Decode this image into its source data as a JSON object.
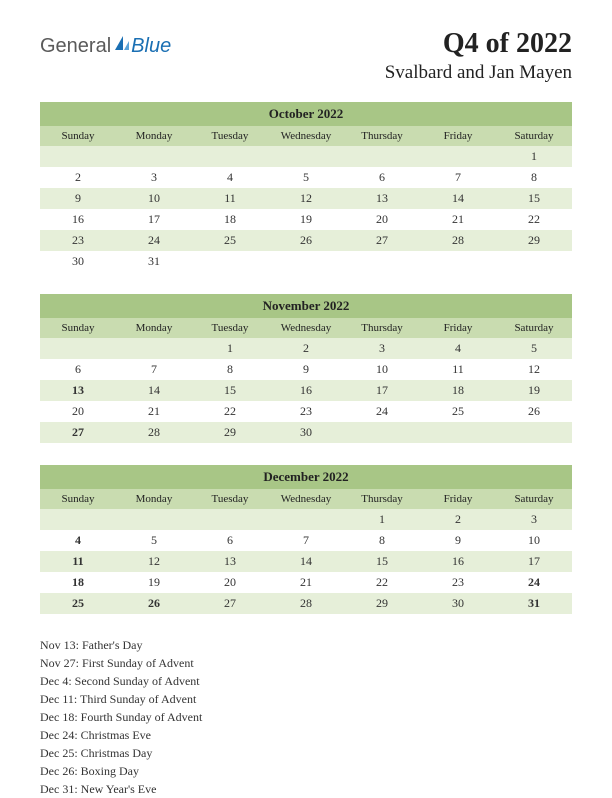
{
  "logo": {
    "part1": "General",
    "part2": "Blue"
  },
  "title": "Q4 of 2022",
  "subtitle": "Svalbard and Jan Mayen",
  "colors": {
    "title_bg": "#a8c686",
    "header_bg": "#c9dcb0",
    "shade_bg": "#e6efd9",
    "holiday": "#c0392b"
  },
  "day_headers": [
    "Sunday",
    "Monday",
    "Tuesday",
    "Wednesday",
    "Thursday",
    "Friday",
    "Saturday"
  ],
  "months": [
    {
      "name": "October 2022",
      "weeks": [
        {
          "shaded": true,
          "days": [
            {
              "n": ""
            },
            {
              "n": ""
            },
            {
              "n": ""
            },
            {
              "n": ""
            },
            {
              "n": ""
            },
            {
              "n": ""
            },
            {
              "n": "1"
            }
          ]
        },
        {
          "shaded": false,
          "days": [
            {
              "n": "2"
            },
            {
              "n": "3"
            },
            {
              "n": "4"
            },
            {
              "n": "5"
            },
            {
              "n": "6"
            },
            {
              "n": "7"
            },
            {
              "n": "8"
            }
          ]
        },
        {
          "shaded": true,
          "days": [
            {
              "n": "9"
            },
            {
              "n": "10"
            },
            {
              "n": "11"
            },
            {
              "n": "12"
            },
            {
              "n": "13"
            },
            {
              "n": "14"
            },
            {
              "n": "15"
            }
          ]
        },
        {
          "shaded": false,
          "days": [
            {
              "n": "16"
            },
            {
              "n": "17"
            },
            {
              "n": "18"
            },
            {
              "n": "19"
            },
            {
              "n": "20"
            },
            {
              "n": "21"
            },
            {
              "n": "22"
            }
          ]
        },
        {
          "shaded": true,
          "days": [
            {
              "n": "23"
            },
            {
              "n": "24"
            },
            {
              "n": "25"
            },
            {
              "n": "26"
            },
            {
              "n": "27"
            },
            {
              "n": "28"
            },
            {
              "n": "29"
            }
          ]
        },
        {
          "shaded": false,
          "days": [
            {
              "n": "30"
            },
            {
              "n": "31"
            },
            {
              "n": ""
            },
            {
              "n": ""
            },
            {
              "n": ""
            },
            {
              "n": ""
            },
            {
              "n": ""
            }
          ]
        }
      ]
    },
    {
      "name": "November 2022",
      "weeks": [
        {
          "shaded": true,
          "days": [
            {
              "n": ""
            },
            {
              "n": ""
            },
            {
              "n": "1"
            },
            {
              "n": "2"
            },
            {
              "n": "3"
            },
            {
              "n": "4"
            },
            {
              "n": "5"
            }
          ]
        },
        {
          "shaded": false,
          "days": [
            {
              "n": "6"
            },
            {
              "n": "7"
            },
            {
              "n": "8"
            },
            {
              "n": "9"
            },
            {
              "n": "10"
            },
            {
              "n": "11"
            },
            {
              "n": "12"
            }
          ]
        },
        {
          "shaded": true,
          "days": [
            {
              "n": "13",
              "h": true
            },
            {
              "n": "14"
            },
            {
              "n": "15"
            },
            {
              "n": "16"
            },
            {
              "n": "17"
            },
            {
              "n": "18"
            },
            {
              "n": "19"
            }
          ]
        },
        {
          "shaded": false,
          "days": [
            {
              "n": "20"
            },
            {
              "n": "21"
            },
            {
              "n": "22"
            },
            {
              "n": "23"
            },
            {
              "n": "24"
            },
            {
              "n": "25"
            },
            {
              "n": "26"
            }
          ]
        },
        {
          "shaded": true,
          "days": [
            {
              "n": "27",
              "h": true
            },
            {
              "n": "28"
            },
            {
              "n": "29"
            },
            {
              "n": "30"
            },
            {
              "n": ""
            },
            {
              "n": ""
            },
            {
              "n": ""
            }
          ]
        }
      ]
    },
    {
      "name": "December 2022",
      "weeks": [
        {
          "shaded": true,
          "days": [
            {
              "n": ""
            },
            {
              "n": ""
            },
            {
              "n": ""
            },
            {
              "n": ""
            },
            {
              "n": "1"
            },
            {
              "n": "2"
            },
            {
              "n": "3"
            }
          ]
        },
        {
          "shaded": false,
          "days": [
            {
              "n": "4",
              "h": true
            },
            {
              "n": "5"
            },
            {
              "n": "6"
            },
            {
              "n": "7"
            },
            {
              "n": "8"
            },
            {
              "n": "9"
            },
            {
              "n": "10"
            }
          ]
        },
        {
          "shaded": true,
          "days": [
            {
              "n": "11",
              "h": true
            },
            {
              "n": "12"
            },
            {
              "n": "13"
            },
            {
              "n": "14"
            },
            {
              "n": "15"
            },
            {
              "n": "16"
            },
            {
              "n": "17"
            }
          ]
        },
        {
          "shaded": false,
          "days": [
            {
              "n": "18",
              "h": true
            },
            {
              "n": "19"
            },
            {
              "n": "20"
            },
            {
              "n": "21"
            },
            {
              "n": "22"
            },
            {
              "n": "23"
            },
            {
              "n": "24",
              "h": true
            }
          ]
        },
        {
          "shaded": true,
          "days": [
            {
              "n": "25",
              "h": true
            },
            {
              "n": "26",
              "h": true
            },
            {
              "n": "27"
            },
            {
              "n": "28"
            },
            {
              "n": "29"
            },
            {
              "n": "30"
            },
            {
              "n": "31",
              "h": true
            }
          ]
        }
      ]
    }
  ],
  "holidays": [
    "Nov 13: Father's Day",
    "Nov 27: First Sunday of Advent",
    "Dec 4: Second Sunday of Advent",
    "Dec 11: Third Sunday of Advent",
    "Dec 18: Fourth Sunday of Advent",
    "Dec 24: Christmas Eve",
    "Dec 25: Christmas Day",
    "Dec 26: Boxing Day",
    "Dec 31: New Year's Eve"
  ]
}
